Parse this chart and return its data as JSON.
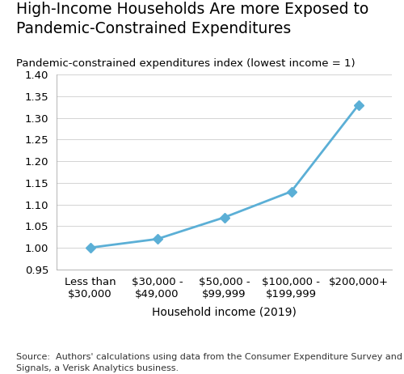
{
  "title_line1": "High-Income Households Are more Exposed to",
  "title_line2": "Pandemic-Constrained Expenditures",
  "ylabel": "Pandemic-constrained expenditures index (lowest income = 1)",
  "xlabel": "Household income (2019)",
  "source_text": "Source:  Authors' calculations using data from the Consumer Expenditure Survey and Commerce\nSignals, a Verisk Analytics business.",
  "x_labels": [
    "Less than\n$30,000",
    "$30,000 -\n$49,000",
    "$50,000 -\n$99,999",
    "$100,000 -\n$199,999",
    "$200,000+"
  ],
  "y_values": [
    1.0,
    1.02,
    1.07,
    1.13,
    1.33
  ],
  "ylim": [
    0.95,
    1.4
  ],
  "yticks": [
    0.95,
    1.0,
    1.05,
    1.1,
    1.15,
    1.2,
    1.25,
    1.3,
    1.35,
    1.4
  ],
  "line_color": "#5bafd6",
  "marker": "D",
  "marker_size": 6,
  "background_color": "#ffffff",
  "title_fontsize": 13.5,
  "ylabel_fontsize": 9.5,
  "axis_label_fontsize": 10,
  "tick_fontsize": 9.5,
  "source_fontsize": 8.0
}
